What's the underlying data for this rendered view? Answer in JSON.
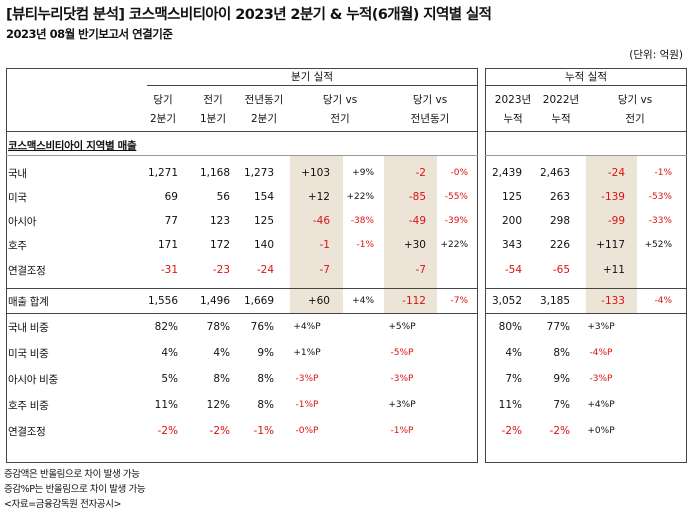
{
  "title": "[뷰티누리닷컴 분석] 코스맥스비티아이 2023년 2분기 & 누적(6개월) 지역별 실적",
  "subtitle": "2023년 08월 반기보고서 연결기준",
  "unit": "(단위: 억원)",
  "headers": {
    "quarter_group": "분기 실적",
    "cum_group": "누적 실적",
    "cur_q": [
      "당기",
      "2분기"
    ],
    "prev_q": [
      "전기",
      "1분기"
    ],
    "yoy_q": [
      "전년동기",
      "2분기"
    ],
    "vs_prev": [
      "당기 vs",
      "전기"
    ],
    "vs_yoy": [
      "당기 vs",
      "전년동기"
    ],
    "cum_2023": [
      "2023년",
      "누적"
    ],
    "cum_2022": [
      "2022년",
      "누적"
    ],
    "cum_vs": [
      "당기 vs",
      "전기"
    ]
  },
  "section_label": "코스맥스비티아이 지역별 매출",
  "rows": [
    {
      "label": "국내",
      "q2": "1,271",
      "q1": "1,168",
      "yoy": "1,273",
      "d_prev": "+103",
      "p_prev": "+9%",
      "d_yoy": "-2",
      "p_yoy": "-0%",
      "c23": "2,439",
      "c22": "2,463",
      "d_cum": "-24",
      "p_cum": "-1%"
    },
    {
      "label": "미국",
      "q2": "69",
      "q1": "56",
      "yoy": "154",
      "d_prev": "+12",
      "p_prev": "+22%",
      "d_yoy": "-85",
      "p_yoy": "-55%",
      "c23": "125",
      "c22": "263",
      "d_cum": "-139",
      "p_cum": "-53%"
    },
    {
      "label": "아시아",
      "q2": "77",
      "q1": "123",
      "yoy": "125",
      "d_prev": "-46",
      "p_prev": "-38%",
      "d_yoy": "-49",
      "p_yoy": "-39%",
      "c23": "200",
      "c22": "298",
      "d_cum": "-99",
      "p_cum": "-33%"
    },
    {
      "label": "호주",
      "q2": "171",
      "q1": "172",
      "yoy": "140",
      "d_prev": "-1",
      "p_prev": "-1%",
      "d_yoy": "+30",
      "p_yoy": "+22%",
      "c23": "343",
      "c22": "226",
      "d_cum": "+117",
      "p_cum": "+52%"
    },
    {
      "label": "연결조정",
      "q2": "-31",
      "q1": "-23",
      "yoy": "-24",
      "d_prev": "-7",
      "p_prev": "",
      "d_yoy": "-7",
      "p_yoy": "",
      "c23": "-54",
      "c22": "-65",
      "d_cum": "+11",
      "p_cum": ""
    }
  ],
  "total": {
    "label": "매출 합계",
    "q2": "1,556",
    "q1": "1,496",
    "yoy": "1,669",
    "d_prev": "+60",
    "p_prev": "+4%",
    "d_yoy": "-112",
    "p_yoy": "-7%",
    "c23": "3,052",
    "c22": "3,185",
    "d_cum": "-133",
    "p_cum": "-4%"
  },
  "shares": [
    {
      "label": "국내 비중",
      "q2": "82%",
      "q1": "78%",
      "yoy": "76%",
      "d_prev": "+4%P",
      "d_yoy": "+5%P",
      "c23": "80%",
      "c22": "77%",
      "d_cum": "+3%P"
    },
    {
      "label": "미국 비중",
      "q2": "4%",
      "q1": "4%",
      "yoy": "9%",
      "d_prev": "+1%P",
      "d_yoy": "-5%P",
      "c23": "4%",
      "c22": "8%",
      "d_cum": "-4%P"
    },
    {
      "label": "아시아 비중",
      "q2": "5%",
      "q1": "8%",
      "yoy": "8%",
      "d_prev": "-3%P",
      "d_yoy": "-3%P",
      "c23": "7%",
      "c22": "9%",
      "d_cum": "-3%P"
    },
    {
      "label": "호주 비중",
      "q2": "11%",
      "q1": "12%",
      "yoy": "8%",
      "d_prev": "-1%P",
      "d_yoy": "+3%P",
      "c23": "11%",
      "c22": "7%",
      "d_cum": "+4%P"
    },
    {
      "label": "연결조정",
      "q2": "-2%",
      "q1": "-2%",
      "yoy": "-1%",
      "d_prev": "-0%P",
      "d_yoy": "-1%P",
      "c23": "-2%",
      "c22": "-2%",
      "d_cum": "+0%P"
    }
  ],
  "footnotes": [
    "증감액은 반올림으로 차이 발생 가능",
    "증감%P는 반올림으로 차이 발생 가능",
    "<자료=금융감독원 전자공시>"
  ],
  "colors": {
    "negative": "#dd1111",
    "highlight": "#ede4d8",
    "border": "#444444"
  }
}
